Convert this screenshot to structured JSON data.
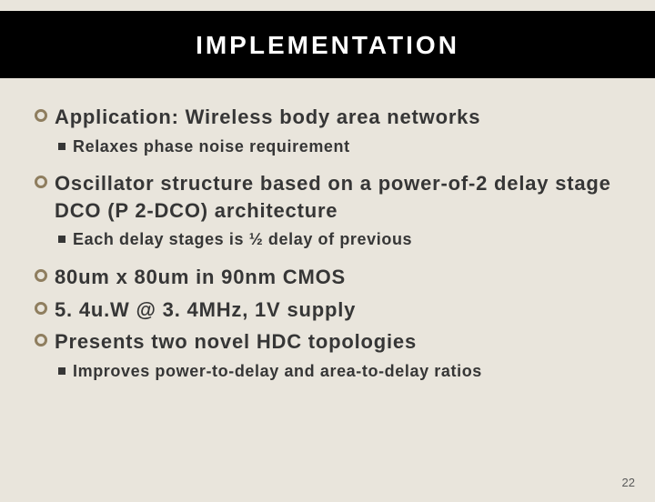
{
  "title": "IMPLEMENTATION",
  "bullets": [
    {
      "text": "Application: Wireless body area networks",
      "sub": [
        {
          "text": "Relaxes phase noise requirement"
        }
      ]
    },
    {
      "text": "Oscillator structure based on a power-of-2 delay stage DCO (P 2-DCO) architecture",
      "sub": [
        {
          "text": "Each delay stages is ½ delay of previous"
        }
      ]
    },
    {
      "text": "80um x 80um in 90nm CMOS",
      "sub": []
    },
    {
      "text": "5. 4u.W @ 3. 4MHz, 1V supply",
      "sub": []
    },
    {
      "text": "Presents two novel HDC topologies",
      "sub": [
        {
          "text": "Improves power-to-delay and area-to-delay ratios"
        }
      ]
    }
  ],
  "pageNumber": "22",
  "colors": {
    "background": "#e9e5dc",
    "band": "#000000",
    "titleText": "#ffffff",
    "bodyText": "#363636",
    "circleBorder": "#8f7e5f",
    "squareFill": "#363636"
  },
  "fonts": {
    "titleSize": 28,
    "mainSize": 22,
    "subSize": 18,
    "pageNumSize": 13
  }
}
